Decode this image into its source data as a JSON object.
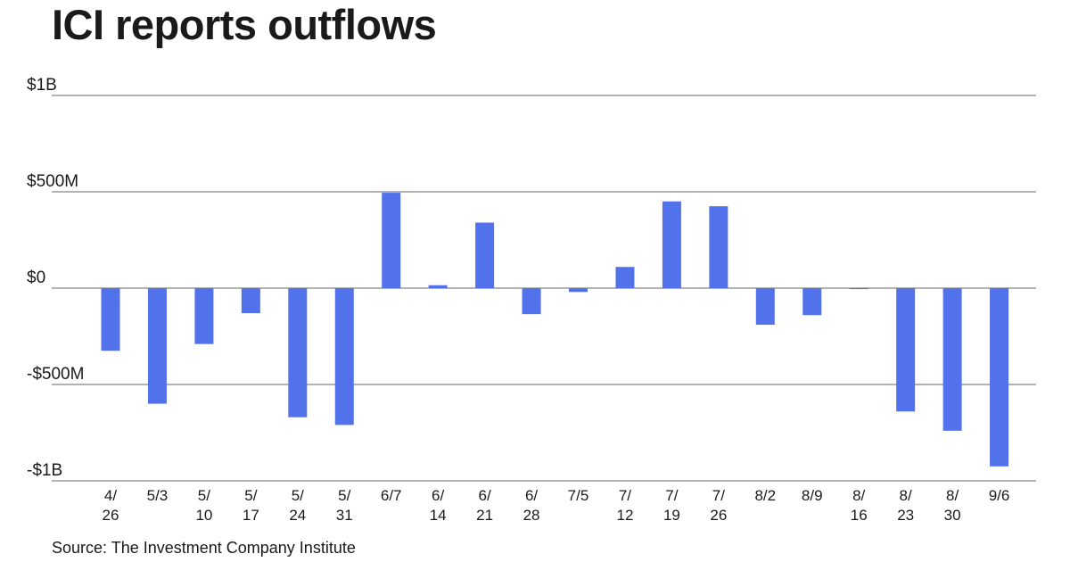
{
  "title": "ICI reports outflows",
  "source": "Source: The Investment Company Institute",
  "colors": {
    "bar": "#5272EC",
    "grid": "#666666",
    "text": "#1a1a1a"
  },
  "chart_data": {
    "type": "bar",
    "title": "ICI reports outflows",
    "xlabel": "",
    "ylabel": "",
    "ylim": [
      -1000,
      1000
    ],
    "units": "$M",
    "grid": true,
    "yticks": [
      {
        "value": 1000,
        "label": "$1B"
      },
      {
        "value": 500,
        "label": "$500M"
      },
      {
        "value": 0,
        "label": "$0"
      },
      {
        "value": -500,
        "label": "-$500M"
      },
      {
        "value": -1000,
        "label": "-$1B"
      }
    ],
    "categories": [
      [
        "4/",
        "26"
      ],
      [
        "5/3"
      ],
      [
        "5/",
        "10"
      ],
      [
        "5/",
        "17"
      ],
      [
        "5/",
        "24"
      ],
      [
        "5/",
        "31"
      ],
      [
        "6/7"
      ],
      [
        "6/",
        "14"
      ],
      [
        "6/",
        "21"
      ],
      [
        "6/",
        "28"
      ],
      [
        "7/5"
      ],
      [
        "7/",
        "12"
      ],
      [
        "7/",
        "19"
      ],
      [
        "7/",
        "26"
      ],
      [
        "8/2"
      ],
      [
        "8/9"
      ],
      [
        "8/",
        "16"
      ],
      [
        "8/",
        "23"
      ],
      [
        "8/",
        "30"
      ],
      [
        "9/6"
      ]
    ],
    "values": [
      -325,
      -600,
      -290,
      -130,
      -670,
      -710,
      495,
      15,
      340,
      -135,
      -20,
      110,
      450,
      425,
      -190,
      -140,
      -5,
      -640,
      -740,
      -925
    ]
  }
}
